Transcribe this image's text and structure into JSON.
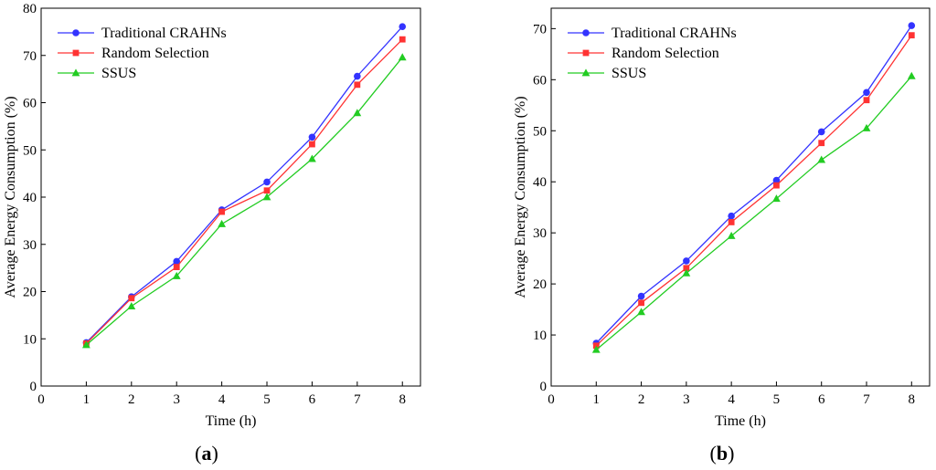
{
  "chart_data": [
    {
      "type": "line",
      "panel_label": "(a)",
      "panel_letter": "a",
      "xlabel": "Time (h)",
      "ylabel": "Average Energy Consumption (%)",
      "xlim": [
        0,
        8.4
      ],
      "ylim": [
        0,
        80
      ],
      "x_ticks": [
        0,
        1,
        2,
        3,
        4,
        5,
        6,
        7,
        8
      ],
      "y_ticks": [
        0,
        10,
        20,
        30,
        40,
        50,
        60,
        70,
        80
      ],
      "grid": false,
      "legend_position": "top-left",
      "x": [
        1,
        2,
        3,
        4,
        5,
        6,
        7,
        8
      ],
      "series": [
        {
          "name": "Traditional CRAHNs",
          "color": "#3333ff",
          "marker": "circle",
          "values": [
            9.2,
            18.9,
            26.4,
            37.3,
            43.2,
            52.7,
            65.6,
            76.1
          ]
        },
        {
          "name": "Random Selection",
          "color": "#ff3333",
          "marker": "square",
          "values": [
            9.0,
            18.6,
            25.2,
            36.9,
            41.4,
            51.2,
            63.8,
            73.4
          ]
        },
        {
          "name": "SSUS",
          "color": "#22cc22",
          "marker": "triangle",
          "values": [
            8.7,
            16.9,
            23.3,
            34.3,
            40.0,
            48.1,
            57.8,
            69.6
          ]
        }
      ]
    },
    {
      "type": "line",
      "panel_label": "(b)",
      "panel_letter": "b",
      "xlabel": "Time (h)",
      "ylabel": "Average Energy Consumption (%)",
      "xlim": [
        0,
        8.4
      ],
      "ylim": [
        0,
        74
      ],
      "x_ticks": [
        0,
        1,
        2,
        3,
        4,
        5,
        6,
        7,
        8
      ],
      "y_ticks": [
        0,
        10,
        20,
        30,
        40,
        50,
        60,
        70
      ],
      "grid": false,
      "legend_position": "top-left",
      "x": [
        1,
        2,
        3,
        4,
        5,
        6,
        7,
        8
      ],
      "series": [
        {
          "name": "Traditional CRAHNs",
          "color": "#3333ff",
          "marker": "circle",
          "values": [
            8.4,
            17.6,
            24.5,
            33.3,
            40.3,
            49.8,
            57.5,
            70.6
          ]
        },
        {
          "name": "Random Selection",
          "color": "#ff3333",
          "marker": "square",
          "values": [
            7.9,
            16.3,
            23.1,
            32.1,
            39.3,
            47.6,
            56.0,
            68.7
          ]
        },
        {
          "name": "SSUS",
          "color": "#22cc22",
          "marker": "triangle",
          "values": [
            7.1,
            14.5,
            22.1,
            29.4,
            36.7,
            44.3,
            50.5,
            60.7
          ]
        }
      ]
    }
  ]
}
